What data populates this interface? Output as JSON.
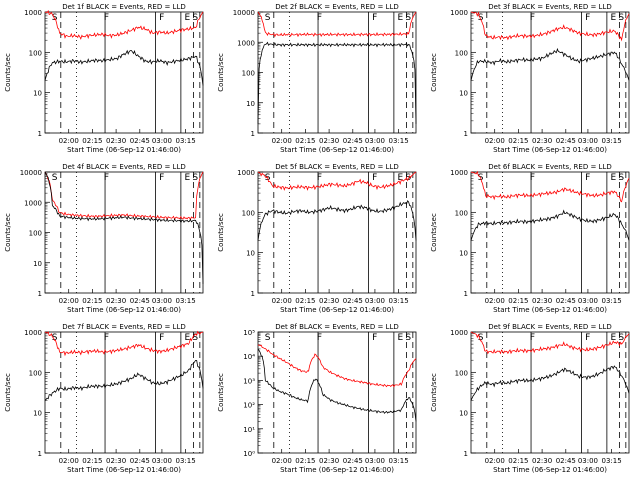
{
  "chart_data": [
    {
      "type": "line",
      "title": "Det 1f BLACK = Events, RED = LLD",
      "xlabel": "Start Time (06-Sep-12 01:46:00)",
      "ylabel": "Counts/sec",
      "yscale": "log",
      "ylim": [
        1,
        1000
      ],
      "yticks": [
        {
          "v": 1,
          "t": "1"
        },
        {
          "v": 10,
          "t": "10"
        },
        {
          "v": 100,
          "t": "100"
        },
        {
          "v": 1000,
          "t": "1000"
        }
      ],
      "xticks": [
        "02:00",
        "02:15",
        "02:30",
        "02:45",
        "03:00",
        "03:15"
      ],
      "markers": [
        {
          "label": "S",
          "pos": "left",
          "style": "solid"
        },
        {
          "label": "F",
          "pos": "mid",
          "style": "solid"
        },
        {
          "label": "F",
          "pos": "late",
          "style": "solid"
        },
        {
          "label": "E",
          "pos": "end",
          "style": "dashed"
        },
        {
          "label": "S",
          "pos": "right",
          "style": "dashed"
        }
      ],
      "series": [
        {
          "color": "#ff0000",
          "values": [
            1000,
            900,
            300,
            250,
            260,
            240,
            260,
            270,
            280,
            260,
            270,
            300,
            350,
            420,
            380,
            300,
            320,
            300,
            330,
            360,
            380,
            410,
            1000
          ]
        },
        {
          "color": "#000000",
          "values": [
            20,
            55,
            60,
            58,
            62,
            57,
            60,
            64,
            62,
            66,
            70,
            90,
            110,
            80,
            60,
            58,
            62,
            55,
            60,
            64,
            70,
            80,
            15
          ]
        }
      ]
    },
    {
      "type": "line",
      "title": "Det 2f BLACK = Events, RED = LLD",
      "xlabel": "Start Time (06-Sep-12 01:46:00)",
      "ylabel": "Counts/sec",
      "yscale": "log",
      "ylim": [
        1,
        10000
      ],
      "yticks": [
        {
          "v": 1,
          "t": "1"
        },
        {
          "v": 10,
          "t": "10"
        },
        {
          "v": 100,
          "t": "100"
        },
        {
          "v": 1000,
          "t": "1000"
        },
        {
          "v": 10000,
          "t": "10000"
        }
      ],
      "xticks": [
        "02:00",
        "02:15",
        "02:30",
        "02:45",
        "03:00",
        "03:15"
      ],
      "markers": [
        {
          "label": "S",
          "pos": "left",
          "style": "solid"
        },
        {
          "label": "F",
          "pos": "mid",
          "style": "solid"
        },
        {
          "label": "F",
          "pos": "late",
          "style": "solid"
        },
        {
          "label": "E",
          "pos": "end",
          "style": "dashed"
        },
        {
          "label": "S",
          "pos": "right",
          "style": "dashed"
        }
      ],
      "series": [
        {
          "color": "#ff0000",
          "values": [
            10000,
            2000,
            1800,
            1750,
            1800,
            1780,
            1800,
            1820,
            1800,
            1790,
            1800,
            1810,
            1800,
            1790,
            1800,
            1820,
            1800,
            1810,
            1820,
            1830,
            1850,
            1900,
            10000
          ]
        },
        {
          "color": "#000000",
          "values": [
            2,
            900,
            850,
            820,
            830,
            820,
            830,
            825,
            820,
            830,
            825,
            820,
            830,
            820,
            825,
            830,
            820,
            825,
            830,
            820,
            840,
            850,
            2
          ]
        }
      ]
    },
    {
      "type": "line",
      "title": "Det 3f BLACK = Events, RED = LLD",
      "xlabel": "Start Time (06-Sep-12 01:46:00)",
      "ylabel": "Counts/sec",
      "yscale": "log",
      "ylim": [
        1,
        1000
      ],
      "yticks": [
        {
          "v": 1,
          "t": "1"
        },
        {
          "v": 10,
          "t": "10"
        },
        {
          "v": 100,
          "t": "100"
        },
        {
          "v": 1000,
          "t": "1000"
        }
      ],
      "xticks": [
        "02:00",
        "02:15",
        "02:30",
        "02:45",
        "03:00",
        "03:15"
      ],
      "markers": [
        {
          "label": "S",
          "pos": "left",
          "style": "solid"
        },
        {
          "label": "F",
          "pos": "mid",
          "style": "solid"
        },
        {
          "label": "F",
          "pos": "late",
          "style": "solid"
        },
        {
          "label": "E",
          "pos": "end",
          "style": "dashed"
        },
        {
          "label": "S",
          "pos": "right",
          "style": "dashed"
        }
      ],
      "series": [
        {
          "color": "#ff0000",
          "values": [
            1000,
            900,
            260,
            230,
            240,
            230,
            250,
            260,
            250,
            260,
            280,
            320,
            380,
            420,
            360,
            300,
            280,
            270,
            290,
            320,
            340,
            200,
            900
          ]
        },
        {
          "color": "#000000",
          "values": [
            20,
            60,
            60,
            55,
            62,
            58,
            62,
            66,
            64,
            68,
            72,
            90,
            110,
            90,
            70,
            60,
            66,
            72,
            80,
            90,
            100,
            50,
            20
          ]
        }
      ]
    },
    {
      "type": "line",
      "title": "Det 4f BLACK = Events, RED = LLD",
      "xlabel": "Start Time (06-Sep-12 01:46:00)",
      "ylabel": "Counts/sec",
      "yscale": "log",
      "ylim": [
        1,
        10000
      ],
      "yticks": [
        {
          "v": 1,
          "t": "1"
        },
        {
          "v": 10,
          "t": "10"
        },
        {
          "v": 100,
          "t": "100"
        },
        {
          "v": 1000,
          "t": "1000"
        },
        {
          "v": 10000,
          "t": "10000"
        }
      ],
      "xticks": [
        "02:00",
        "02:15",
        "02:30",
        "02:45",
        "03:00",
        "03:15"
      ],
      "markers": [
        {
          "label": "S",
          "pos": "left",
          "style": "solid"
        },
        {
          "label": "F",
          "pos": "mid",
          "style": "solid"
        },
        {
          "label": "F",
          "pos": "late",
          "style": "solid"
        },
        {
          "label": "E",
          "pos": "end",
          "style": "dashed"
        },
        {
          "label": "S",
          "pos": "right",
          "style": "dashed"
        }
      ],
      "series": [
        {
          "color": "#ff0000",
          "values": [
            10000,
            1200,
            450,
            400,
            380,
            360,
            350,
            340,
            350,
            360,
            370,
            380,
            360,
            350,
            340,
            330,
            320,
            310,
            310,
            300,
            300,
            310,
            10000
          ]
        },
        {
          "color": "#000000",
          "values": [
            10000,
            800,
            350,
            320,
            300,
            290,
            285,
            280,
            290,
            300,
            310,
            320,
            300,
            290,
            280,
            270,
            260,
            250,
            250,
            240,
            240,
            250,
            2
          ]
        }
      ]
    },
    {
      "type": "line",
      "title": "Det 5f BLACK = Events, RED = LLD",
      "xlabel": "Start Time (06-Sep-12 01:46:00)",
      "ylabel": "Counts/sec",
      "yscale": "log",
      "ylim": [
        1,
        1000
      ],
      "yticks": [
        {
          "v": 1,
          "t": "1"
        },
        {
          "v": 10,
          "t": "10"
        },
        {
          "v": 100,
          "t": "100"
        },
        {
          "v": 1000,
          "t": "1000"
        }
      ],
      "xticks": [
        "02:00",
        "02:15",
        "02:30",
        "02:45",
        "03:00",
        "03:15"
      ],
      "markers": [
        {
          "label": "S",
          "pos": "left",
          "style": "solid"
        },
        {
          "label": "F",
          "pos": "mid",
          "style": "solid"
        },
        {
          "label": "F",
          "pos": "late",
          "style": "solid"
        },
        {
          "label": "E",
          "pos": "end",
          "style": "dashed"
        },
        {
          "label": "S",
          "pos": "right",
          "style": "dashed"
        }
      ],
      "series": [
        {
          "color": "#ff0000",
          "values": [
            1000,
            800,
            450,
            420,
            400,
            420,
            430,
            410,
            420,
            450,
            500,
            480,
            450,
            500,
            600,
            550,
            450,
            420,
            450,
            500,
            600,
            700,
            1000
          ]
        },
        {
          "color": "#000000",
          "values": [
            20,
            90,
            110,
            100,
            95,
            105,
            110,
            100,
            105,
            115,
            130,
            120,
            110,
            120,
            140,
            130,
            110,
            105,
            115,
            130,
            160,
            180,
            20
          ]
        }
      ]
    },
    {
      "type": "line",
      "title": "Det 6f BLACK = Events, RED = LLD",
      "xlabel": "Start Time (06-Sep-12 01:46:00)",
      "ylabel": "Counts/sec",
      "yscale": "log",
      "ylim": [
        1,
        1000
      ],
      "yticks": [
        {
          "v": 1,
          "t": "1"
        },
        {
          "v": 10,
          "t": "10"
        },
        {
          "v": 100,
          "t": "100"
        },
        {
          "v": 1000,
          "t": "1000"
        }
      ],
      "xticks": [
        "02:00",
        "02:15",
        "02:30",
        "02:45",
        "03:00",
        "03:15"
      ],
      "markers": [
        {
          "label": "S",
          "pos": "left",
          "style": "solid"
        },
        {
          "label": "F",
          "pos": "mid",
          "style": "solid"
        },
        {
          "label": "F",
          "pos": "late",
          "style": "solid"
        },
        {
          "label": "E",
          "pos": "end",
          "style": "dashed"
        },
        {
          "label": "S",
          "pos": "right",
          "style": "dashed"
        }
      ],
      "series": [
        {
          "color": "#ff0000",
          "values": [
            1000,
            900,
            260,
            240,
            250,
            240,
            260,
            270,
            260,
            270,
            290,
            300,
            320,
            380,
            340,
            300,
            280,
            260,
            270,
            300,
            330,
            180,
            700
          ]
        },
        {
          "color": "#000000",
          "values": [
            20,
            50,
            55,
            52,
            56,
            55,
            58,
            60,
            58,
            62,
            66,
            70,
            80,
            100,
            85,
            70,
            62,
            60,
            66,
            75,
            90,
            50,
            20
          ]
        }
      ]
    },
    {
      "type": "line",
      "title": "Det 7f BLACK = Events, RED = LLD",
      "xlabel": "Start Time (06-Sep-12 01:46:00)",
      "ylabel": "Counts/sec",
      "yscale": "log",
      "ylim": [
        1,
        1000
      ],
      "yticks": [
        {
          "v": 1,
          "t": "1"
        },
        {
          "v": 10,
          "t": "10"
        },
        {
          "v": 100,
          "t": "100"
        },
        {
          "v": 1000,
          "t": "1000"
        }
      ],
      "xticks": [
        "02:00",
        "02:15",
        "02:30",
        "02:45",
        "03:00",
        "03:15"
      ],
      "markers": [
        {
          "label": "S",
          "pos": "left",
          "style": "solid"
        },
        {
          "label": "F",
          "pos": "mid",
          "style": "solid"
        },
        {
          "label": "F",
          "pos": "late",
          "style": "solid"
        },
        {
          "label": "E",
          "pos": "end",
          "style": "dashed"
        },
        {
          "label": "S",
          "pos": "right",
          "style": "dashed"
        }
      ],
      "series": [
        {
          "color": "#ff0000",
          "values": [
            1000,
            800,
            320,
            300,
            320,
            310,
            330,
            340,
            320,
            330,
            350,
            380,
            420,
            480,
            400,
            350,
            330,
            350,
            400,
            450,
            520,
            900,
            1000
          ]
        },
        {
          "color": "#000000",
          "values": [
            20,
            30,
            40,
            38,
            42,
            40,
            44,
            46,
            45,
            48,
            52,
            60,
            70,
            90,
            70,
            55,
            52,
            58,
            70,
            85,
            110,
            200,
            40
          ]
        }
      ]
    },
    {
      "type": "line",
      "title": "Det 8f BLACK = Events, RED = LLD",
      "xlabel": "Start Time (06-Sep-12 01:46:00)",
      "ylabel": "Counts/sec",
      "yscale": "log",
      "ylim": [
        1,
        100000
      ],
      "yticks": [
        {
          "v": 1,
          "t": "10⁰"
        },
        {
          "v": 10,
          "t": "10¹"
        },
        {
          "v": 100,
          "t": "10²"
        },
        {
          "v": 1000,
          "t": "10³"
        },
        {
          "v": 10000,
          "t": "10⁴"
        },
        {
          "v": 100000,
          "t": "10⁵"
        }
      ],
      "xticks": [
        "02:00",
        "02:15",
        "02:30",
        "02:45",
        "03:00",
        "03:15"
      ],
      "markers": [
        {
          "label": "S",
          "pos": "left",
          "style": "solid"
        },
        {
          "label": "F",
          "pos": "mid",
          "style": "solid"
        },
        {
          "label": "F",
          "pos": "late",
          "style": "solid"
        },
        {
          "label": "E",
          "pos": "end",
          "style": "dashed"
        },
        {
          "label": "S",
          "pos": "right",
          "style": "dashed"
        }
      ],
      "series": [
        {
          "color": "#ff0000",
          "values": [
            30000,
            20000,
            12000,
            8000,
            5500,
            3500,
            2500,
            2200,
            12000,
            3500,
            2200,
            1600,
            1200,
            1000,
            900,
            800,
            700,
            650,
            600,
            620,
            700,
            2500,
            8000
          ]
        },
        {
          "color": "#000000",
          "values": [
            20000,
            1000,
            500,
            350,
            280,
            200,
            160,
            140,
            1200,
            260,
            160,
            120,
            100,
            80,
            70,
            60,
            55,
            50,
            48,
            52,
            60,
            200,
            20
          ]
        }
      ]
    },
    {
      "type": "line",
      "title": "Det 9f BLACK = Events, RED = LLD",
      "xlabel": "Start Time (06-Sep-12 01:46:00)",
      "ylabel": "Counts/sec",
      "yscale": "log",
      "ylim": [
        1,
        1000
      ],
      "yticks": [
        {
          "v": 1,
          "t": "1"
        },
        {
          "v": 10,
          "t": "10"
        },
        {
          "v": 100,
          "t": "100"
        },
        {
          "v": 1000,
          "t": "1000"
        }
      ],
      "xticks": [
        "02:00",
        "02:15",
        "02:30",
        "02:45",
        "03:00",
        "03:15"
      ],
      "markers": [
        {
          "label": "S",
          "pos": "left",
          "style": "solid"
        },
        {
          "label": "F",
          "pos": "mid",
          "style": "solid"
        },
        {
          "label": "F",
          "pos": "late",
          "style": "solid"
        },
        {
          "label": "E",
          "pos": "end",
          "style": "dashed"
        },
        {
          "label": "S",
          "pos": "right",
          "style": "dashed"
        }
      ],
      "series": [
        {
          "color": "#ff0000",
          "values": [
            1000,
            800,
            330,
            320,
            330,
            320,
            340,
            350,
            340,
            360,
            380,
            400,
            450,
            500,
            420,
            380,
            360,
            380,
            420,
            480,
            560,
            500,
            900
          ]
        },
        {
          "color": "#000000",
          "values": [
            20,
            40,
            55,
            50,
            56,
            54,
            60,
            64,
            62,
            66,
            72,
            80,
            95,
            120,
            100,
            80,
            75,
            80,
            95,
            120,
            140,
            80,
            30
          ]
        }
      ]
    }
  ]
}
